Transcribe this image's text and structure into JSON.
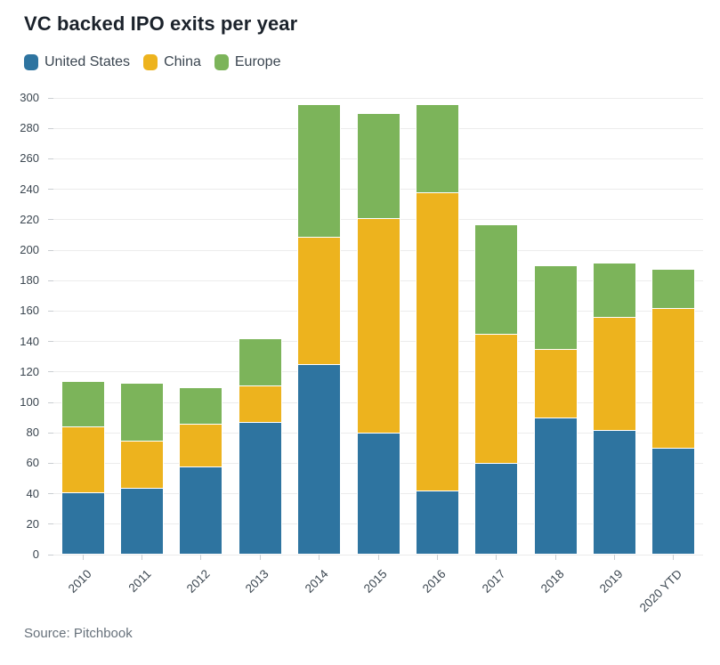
{
  "title": "VC backed IPO exits per year",
  "source": "Source: Pitchbook",
  "colors": {
    "united_states": "#2e74a0",
    "china": "#edb31e",
    "europe": "#7cb45a",
    "gridline": "#ececec",
    "axis_text": "#3b4650",
    "title_text": "#1b222b",
    "source_text": "#67717b"
  },
  "chart_data": {
    "type": "bar",
    "stacked": true,
    "title": "VC backed IPO exits per year",
    "xlabel": "",
    "ylabel": "",
    "categories": [
      "2010",
      "2011",
      "2012",
      "2013",
      "2014",
      "2015",
      "2016",
      "2017",
      "2018",
      "2019",
      "2020 YTD"
    ],
    "series": [
      {
        "name": "United States",
        "color": "#2e74a0",
        "values": [
          41,
          44,
          58,
          87,
          125,
          80,
          42,
          60,
          90,
          82,
          70
        ]
      },
      {
        "name": "China",
        "color": "#edb31e",
        "values": [
          43,
          31,
          28,
          24,
          84,
          141,
          196,
          85,
          45,
          74,
          92
        ]
      },
      {
        "name": "Europe",
        "color": "#7cb45a",
        "values": [
          30,
          38,
          24,
          31,
          87,
          69,
          58,
          72,
          55,
          36,
          26
        ]
      }
    ],
    "stack_totals": [
      114,
      113,
      110,
      142,
      296,
      290,
      296,
      217,
      190,
      192,
      188
    ],
    "ylim": [
      0,
      300
    ],
    "y_ticks": [
      0,
      20,
      40,
      60,
      80,
      100,
      120,
      140,
      160,
      180,
      200,
      220,
      240,
      260,
      280,
      300
    ],
    "grid": true,
    "legend_position": "top-left"
  }
}
